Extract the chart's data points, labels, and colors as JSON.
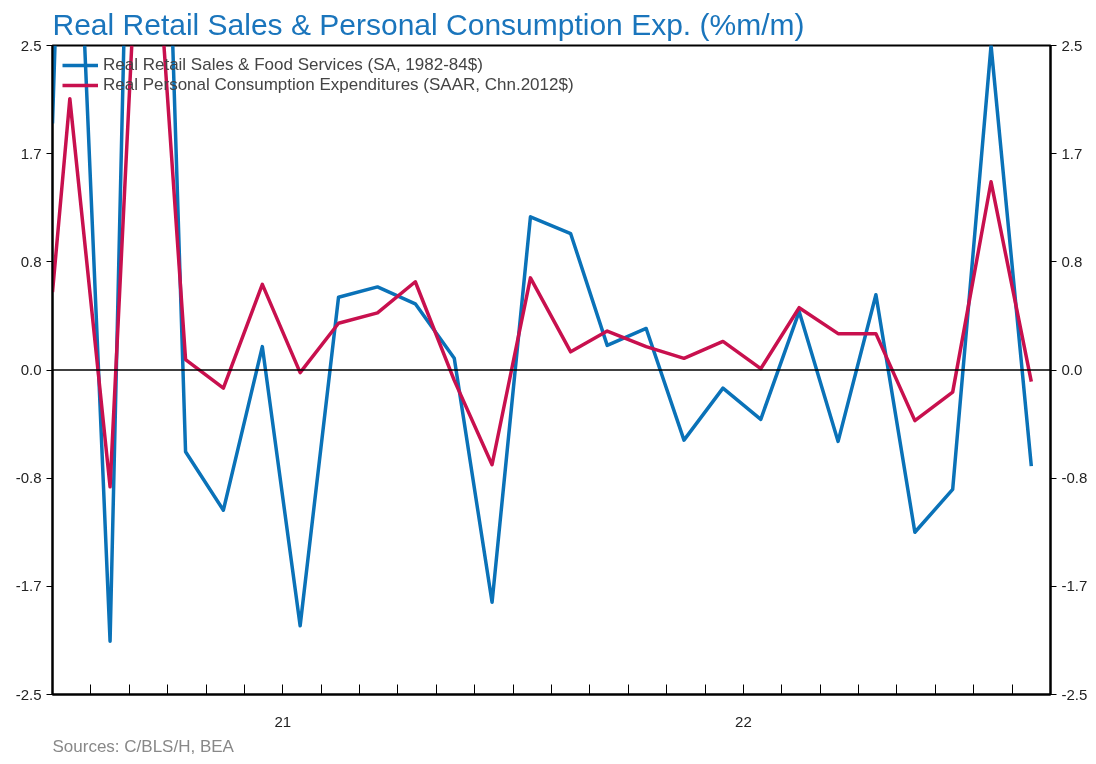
{
  "chart_data": {
    "type": "line",
    "title": "Real Retail Sales & Personal Consumption Exp. (%m/m)",
    "series": [
      {
        "name": "Real Retail Sales & Food Services (SA, 1982-84$)",
        "color": "#0a72b8",
        "x": [
          "2021-01-01",
          "2021-01-03",
          "2021-01-15",
          "2021-01-27",
          "2021-02-15",
          "2021-02-25",
          "2021-03-15",
          "2021-04-05",
          "2021-04-15",
          "2021-05-15",
          "2021-06-15",
          "2021-07-15",
          "2021-08-15",
          "2021-09-15",
          "2021-10-15",
          "2021-11-15",
          "2021-12-15",
          "2022-01-15",
          "2022-02-15",
          "2022-03-15",
          "2022-04-15",
          "2022-05-15",
          "2022-06-15",
          "2022-07-15",
          "2022-08-15",
          "2022-09-15",
          "2022-10-15",
          "2022-11-15",
          "2022-12-15",
          "2023-01-15",
          "2023-02-15"
        ],
        "values": [
          1.9,
          2.5,
          null,
          2.5,
          -2.09,
          2.5,
          null,
          2.5,
          -0.63,
          -1.08,
          0.18,
          -1.97,
          0.56,
          0.64,
          0.51,
          0.09,
          -1.79,
          1.18,
          1.05,
          0.19,
          0.32,
          -0.54,
          -0.14,
          -0.38,
          0.45,
          -0.55,
          0.58,
          -1.25,
          -0.92,
          2.5,
          -0.74
        ]
      },
      {
        "name": "Real Personal Consumption Expenditures (SAAR, Chn.2012$)",
        "color": "#c8104e",
        "x": [
          "2021-01-01",
          "2021-01-15",
          "2021-02-15",
          "2021-03-03",
          "2021-03-15",
          "2021-03-29",
          "2021-04-15",
          "2021-05-15",
          "2021-06-15",
          "2021-07-15",
          "2021-08-15",
          "2021-09-15",
          "2021-10-15",
          "2021-11-15",
          "2021-12-15",
          "2022-01-15",
          "2022-02-15",
          "2022-03-15",
          "2022-04-15",
          "2022-05-15",
          "2022-06-15",
          "2022-07-15",
          "2022-08-15",
          "2022-09-15",
          "2022-10-15",
          "2022-11-15",
          "2022-12-15",
          "2023-01-15",
          "2023-02-15"
        ],
        "values": [
          0.6,
          2.09,
          -0.9,
          2.5,
          null,
          2.5,
          0.08,
          -0.14,
          0.66,
          -0.02,
          0.36,
          0.44,
          0.68,
          -0.08,
          -0.73,
          0.71,
          0.14,
          0.3,
          0.18,
          0.09,
          0.22,
          0.01,
          0.48,
          0.28,
          0.28,
          -0.39,
          -0.17,
          1.45,
          -0.09
        ]
      }
    ],
    "xlim": [
      "2021-01-01",
      "2023-03-01"
    ],
    "xticks": [
      {
        "value": "2021-02-01",
        "label": null
      },
      {
        "value": "2021-03-01",
        "label": null
      },
      {
        "value": "2021-04-01",
        "label": null
      },
      {
        "value": "2021-05-01",
        "label": null
      },
      {
        "value": "2021-06-01",
        "label": null
      },
      {
        "value": "2021-07-01",
        "label": "21"
      },
      {
        "value": "2021-08-01",
        "label": null
      },
      {
        "value": "2021-09-01",
        "label": null
      },
      {
        "value": "2021-10-01",
        "label": null
      },
      {
        "value": "2021-11-01",
        "label": null
      },
      {
        "value": "2021-12-01",
        "label": null
      },
      {
        "value": "2022-01-01",
        "label": null
      },
      {
        "value": "2022-02-01",
        "label": null
      },
      {
        "value": "2022-03-01",
        "label": null
      },
      {
        "value": "2022-04-01",
        "label": null
      },
      {
        "value": "2022-05-01",
        "label": null
      },
      {
        "value": "2022-06-01",
        "label": null
      },
      {
        "value": "2022-07-01",
        "label": "22"
      },
      {
        "value": "2022-08-01",
        "label": null
      },
      {
        "value": "2022-09-01",
        "label": null
      },
      {
        "value": "2022-10-01",
        "label": null
      },
      {
        "value": "2022-11-01",
        "label": null
      },
      {
        "value": "2022-12-01",
        "label": null
      },
      {
        "value": "2023-01-01",
        "label": null
      },
      {
        "value": "2023-02-01",
        "label": null
      }
    ],
    "ylim": [
      -2.5,
      2.5
    ],
    "yticks": [
      -2.5,
      {
        "value": -1.667,
        "label": "-1.7"
      },
      {
        "value": -0.833,
        "label": "-0.8"
      },
      {
        "value": 0,
        "label": "0.0"
      },
      {
        "value": 0.833,
        "label": "0.8"
      },
      {
        "value": 1.667,
        "label": "1.7"
      },
      2.5
    ],
    "y2lim": [
      -2.5,
      2.5
    ],
    "y2ticks": [
      -2.5,
      {
        "value": -1.667,
        "label": "-1.7"
      },
      {
        "value": -0.833,
        "label": "-0.8"
      },
      {
        "value": 0,
        "label": "0.0"
      },
      {
        "value": 0.833,
        "label": "0.8"
      },
      {
        "value": 1.667,
        "label": "1.7"
      },
      2.5
    ],
    "ref_lines": [
      {
        "axis": "y",
        "value": 0,
        "color": "#000000"
      }
    ],
    "legend": "top left",
    "annotations": [
      "Sources:  C/BLS/H, BEA"
    ]
  }
}
